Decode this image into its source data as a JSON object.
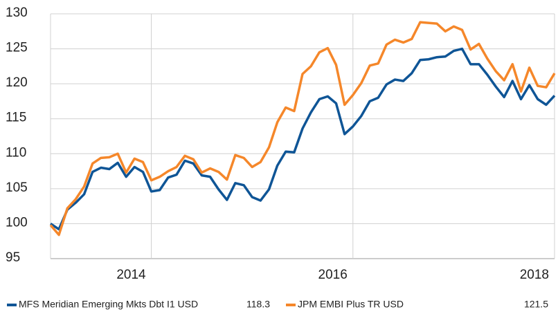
{
  "chart_data": {
    "type": "line",
    "x": [
      2013,
      2013.083,
      2013.167,
      2013.25,
      2013.333,
      2013.417,
      2013.5,
      2013.583,
      2013.667,
      2013.75,
      2013.833,
      2013.917,
      2014,
      2014.083,
      2014.167,
      2014.25,
      2014.333,
      2014.417,
      2014.5,
      2014.583,
      2014.667,
      2014.75,
      2014.833,
      2014.917,
      2015,
      2015.083,
      2015.167,
      2015.25,
      2015.333,
      2015.417,
      2015.5,
      2015.583,
      2015.667,
      2015.75,
      2015.833,
      2015.917,
      2016,
      2016.083,
      2016.167,
      2016.25,
      2016.333,
      2016.417,
      2016.5,
      2016.583,
      2016.667,
      2016.75,
      2016.833,
      2016.917,
      2017,
      2017.083,
      2017.167,
      2017.25,
      2017.333,
      2017.417,
      2017.5,
      2017.583,
      2017.667,
      2017.75,
      2017.833,
      2017.917,
      2018
    ],
    "series": [
      {
        "name": "MFS Meridian Emerging Mkts Dbt I1 USD",
        "color": "#0f5596",
        "latest": 118.3,
        "values": [
          100,
          99.2,
          102,
          103,
          104.2,
          107.4,
          108,
          107.8,
          108.7,
          106.7,
          108.1,
          107.4,
          104.6,
          104.8,
          106.6,
          107,
          109,
          108.6,
          106.9,
          106.7,
          104.9,
          103.4,
          105.8,
          105.5,
          103.8,
          103.3,
          104.9,
          108.3,
          110.3,
          110.2,
          113.6,
          115.9,
          117.8,
          118.2,
          117.2,
          112.8,
          113.9,
          115.4,
          117.5,
          118,
          119.9,
          120.6,
          120.4,
          121.5,
          123.4,
          123.5,
          123.8,
          123.9,
          124.7,
          125,
          122.8,
          122.8,
          121.3,
          119.6,
          118.1,
          120.4,
          117.8,
          119.8,
          117.8,
          117,
          118.3
        ]
      },
      {
        "name": "JPM EMBI Plus TR USD",
        "color": "#f5872a",
        "latest": 121.5,
        "values": [
          99.8,
          98.4,
          102.2,
          103.5,
          105.3,
          108.6,
          109.4,
          109.5,
          110,
          107.3,
          109.3,
          108.8,
          106.2,
          106.7,
          107.5,
          108.1,
          109.7,
          109.2,
          107.3,
          107.9,
          107.4,
          106.3,
          109.8,
          109.4,
          108.1,
          108.8,
          110.9,
          114.5,
          116.6,
          116.1,
          121.4,
          122.5,
          124.5,
          125.1,
          122.7,
          117,
          118.4,
          120.1,
          122.6,
          122.9,
          125.6,
          126.3,
          125.9,
          126.4,
          128.8,
          128.7,
          128.6,
          127.5,
          128.2,
          127.7,
          124.9,
          125.7,
          123.6,
          121.8,
          120.5,
          122.8,
          118.9,
          122.3,
          119.7,
          119.5,
          121.5
        ]
      }
    ],
    "xlim": [
      2013,
      2018
    ],
    "xticks": [
      2014,
      2016,
      2018
    ],
    "ylim": [
      95,
      130
    ],
    "yticks": [
      95,
      100,
      105,
      110,
      115,
      120,
      125,
      130
    ],
    "grid": true
  }
}
